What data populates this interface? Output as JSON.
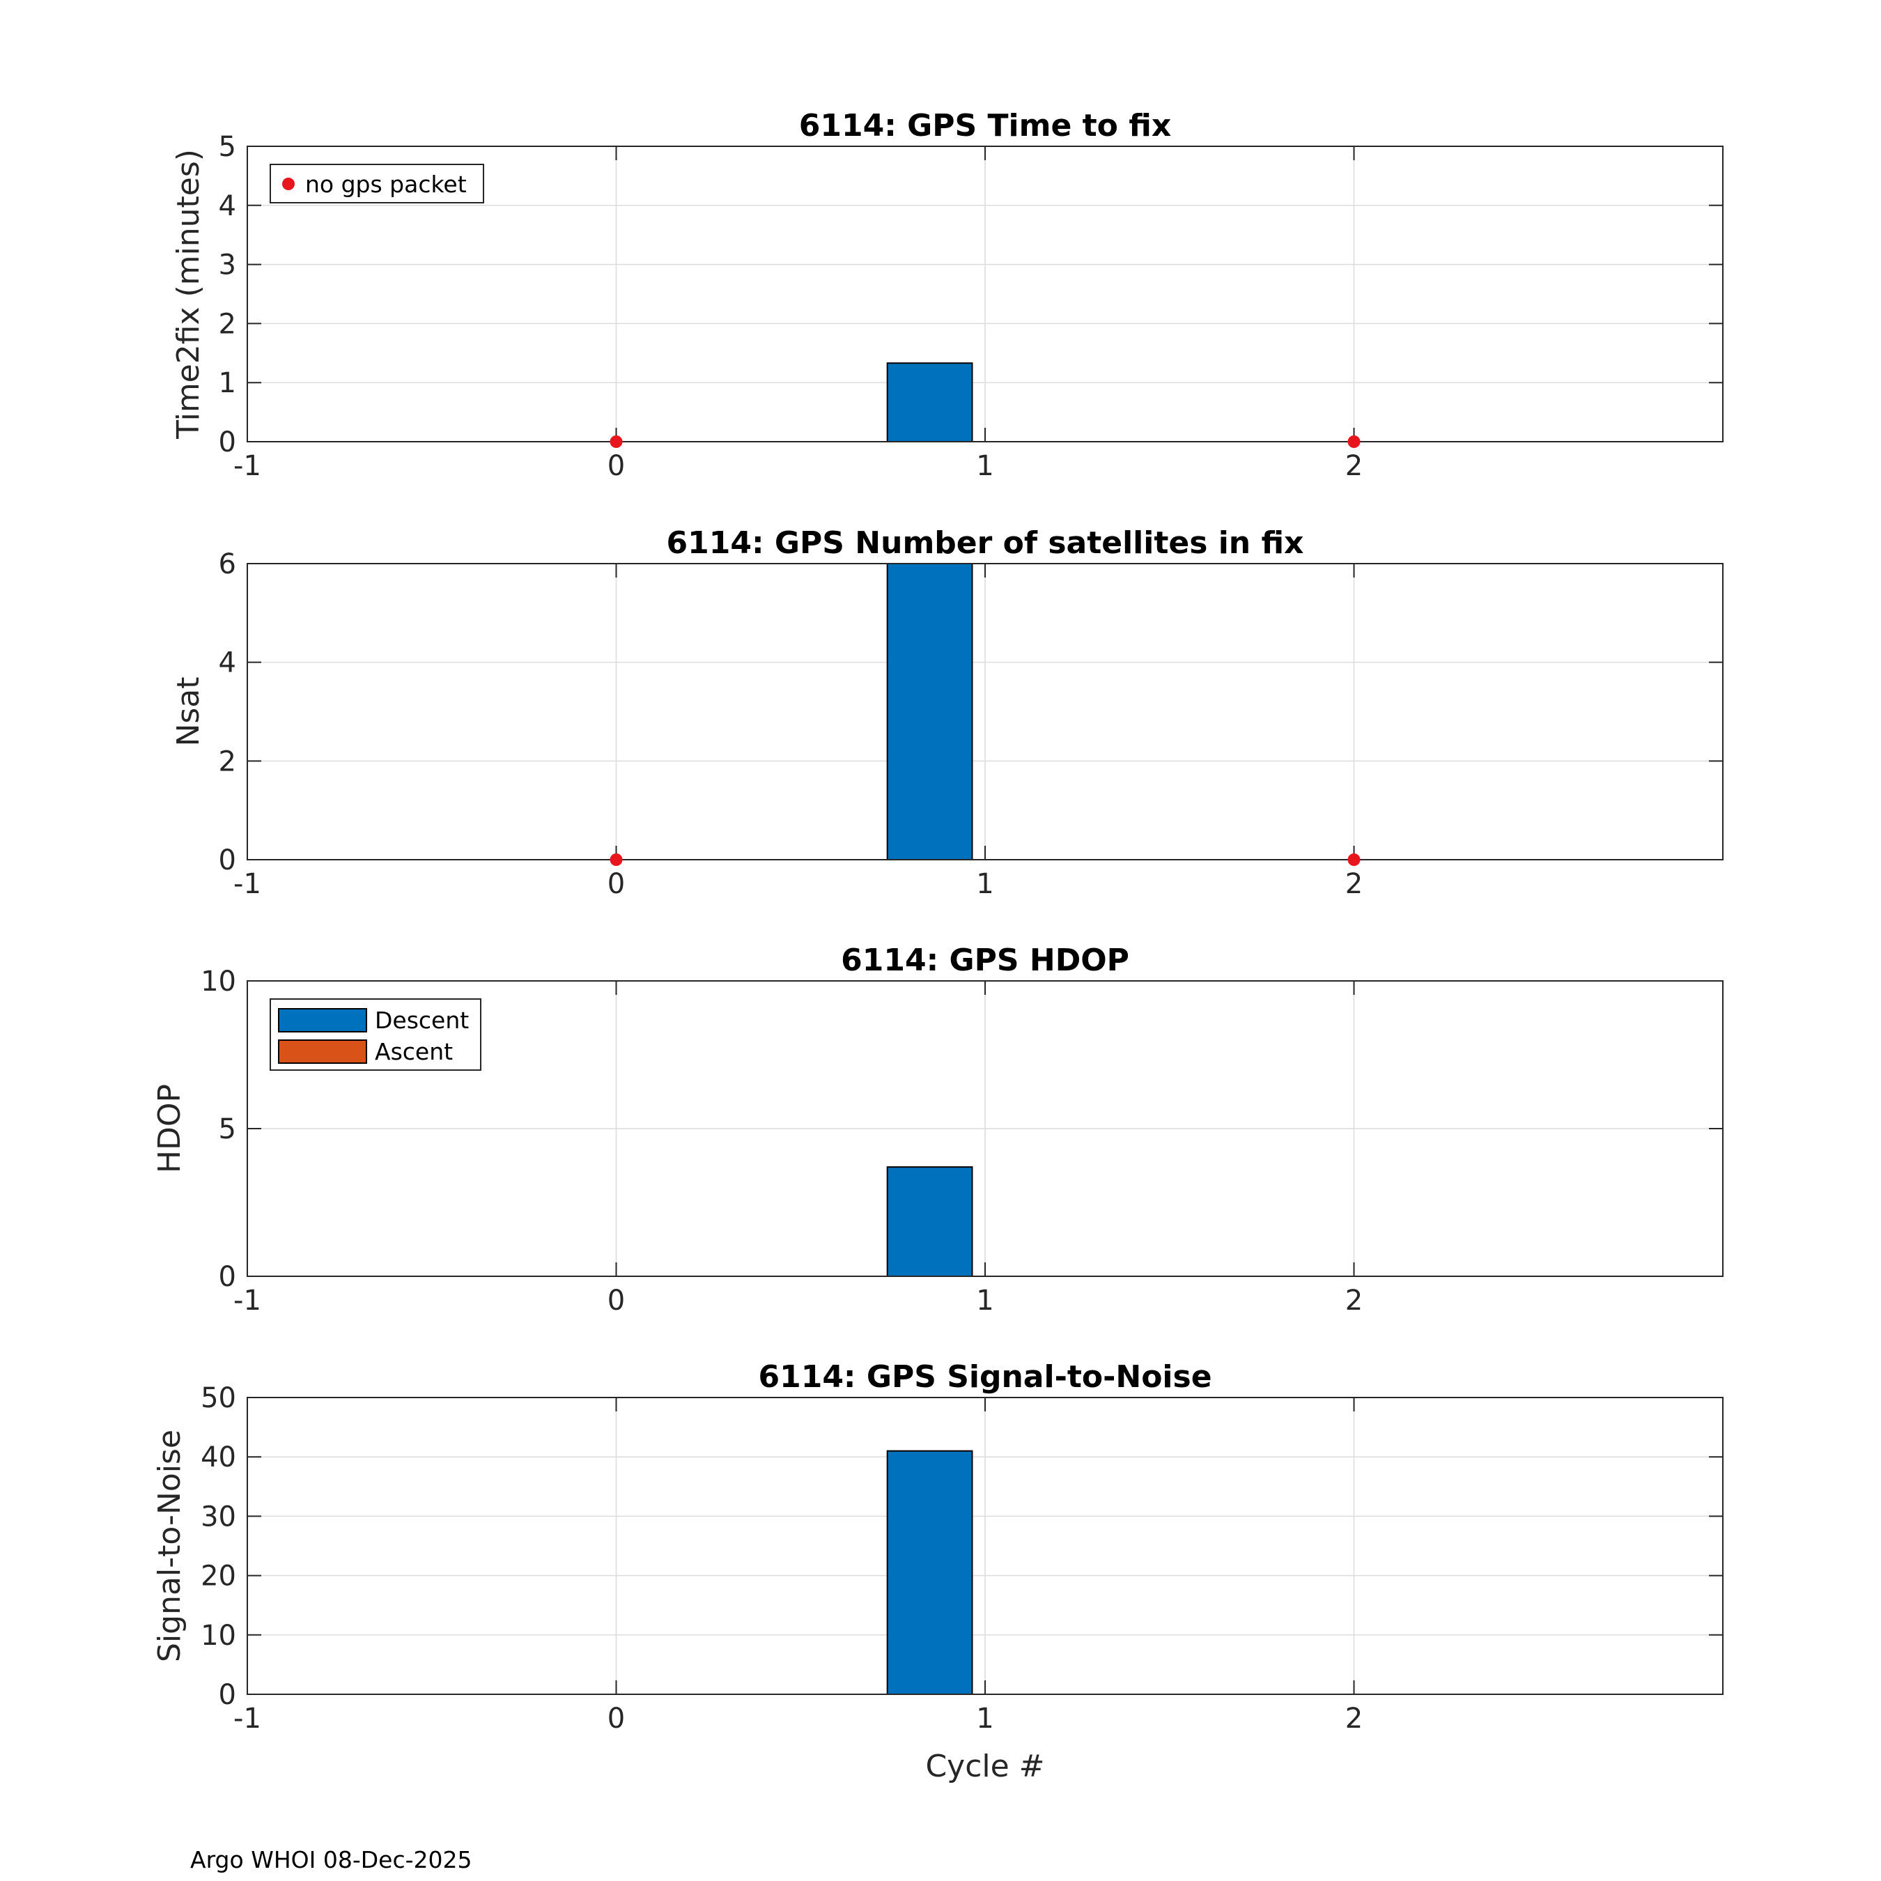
{
  "footer": "Argo WHOI 08-Dec-2025",
  "xlabel": "Cycle #",
  "colors": {
    "descent": "#0072BD",
    "ascent": "#D95319",
    "nogps": "#E8161C",
    "grid": "#DCDCDC",
    "axis": "#262626"
  },
  "chart_data": [
    {
      "type": "bar",
      "title": "6114: GPS Time to fix",
      "ylabel": "Time2fix (minutes)",
      "xlim": [
        -1,
        3
      ],
      "ylim": [
        0,
        5
      ],
      "xticks": [
        -1,
        0,
        1,
        2
      ],
      "yticks": [
        0,
        1,
        2,
        3,
        4,
        5
      ],
      "series": [
        {
          "name": "Descent",
          "x": [
            0.85
          ],
          "values": [
            1.33
          ]
        }
      ],
      "markers": {
        "name": "no gps packet",
        "x": [
          0,
          2
        ],
        "y": [
          0,
          0
        ]
      },
      "legend": {
        "position": "top-left",
        "entries": [
          "no gps packet"
        ]
      }
    },
    {
      "type": "bar",
      "title": "6114: GPS Number of satellites in fix",
      "ylabel": "Nsat",
      "xlim": [
        -1,
        3
      ],
      "ylim": [
        0,
        6
      ],
      "xticks": [
        -1,
        0,
        1,
        2
      ],
      "yticks": [
        0,
        2,
        4,
        6
      ],
      "series": [
        {
          "name": "Descent",
          "x": [
            0.85
          ],
          "values": [
            6
          ]
        }
      ],
      "markers": {
        "name": "no gps packet",
        "x": [
          0,
          2
        ],
        "y": [
          0,
          0
        ]
      }
    },
    {
      "type": "bar",
      "title": "6114: GPS HDOP",
      "ylabel": "HDOP",
      "xlim": [
        -1,
        3
      ],
      "ylim": [
        0,
        10
      ],
      "xticks": [
        -1,
        0,
        1,
        2
      ],
      "yticks": [
        0,
        5,
        10
      ],
      "series": [
        {
          "name": "Descent",
          "x": [
            0.85
          ],
          "values": [
            3.7
          ]
        },
        {
          "name": "Ascent",
          "x": [],
          "values": []
        }
      ],
      "legend": {
        "position": "top-left",
        "entries": [
          "Descent",
          "Ascent"
        ]
      }
    },
    {
      "type": "bar",
      "title": "6114: GPS Signal-to-Noise",
      "ylabel": "Signal-to-Noise",
      "xlabel": "Cycle #",
      "xlim": [
        -1,
        3
      ],
      "ylim": [
        0,
        50
      ],
      "xticks": [
        -1,
        0,
        1,
        2
      ],
      "yticks": [
        0,
        10,
        20,
        30,
        40,
        50
      ],
      "series": [
        {
          "name": "Descent",
          "x": [
            0.85
          ],
          "values": [
            41
          ]
        }
      ]
    }
  ]
}
